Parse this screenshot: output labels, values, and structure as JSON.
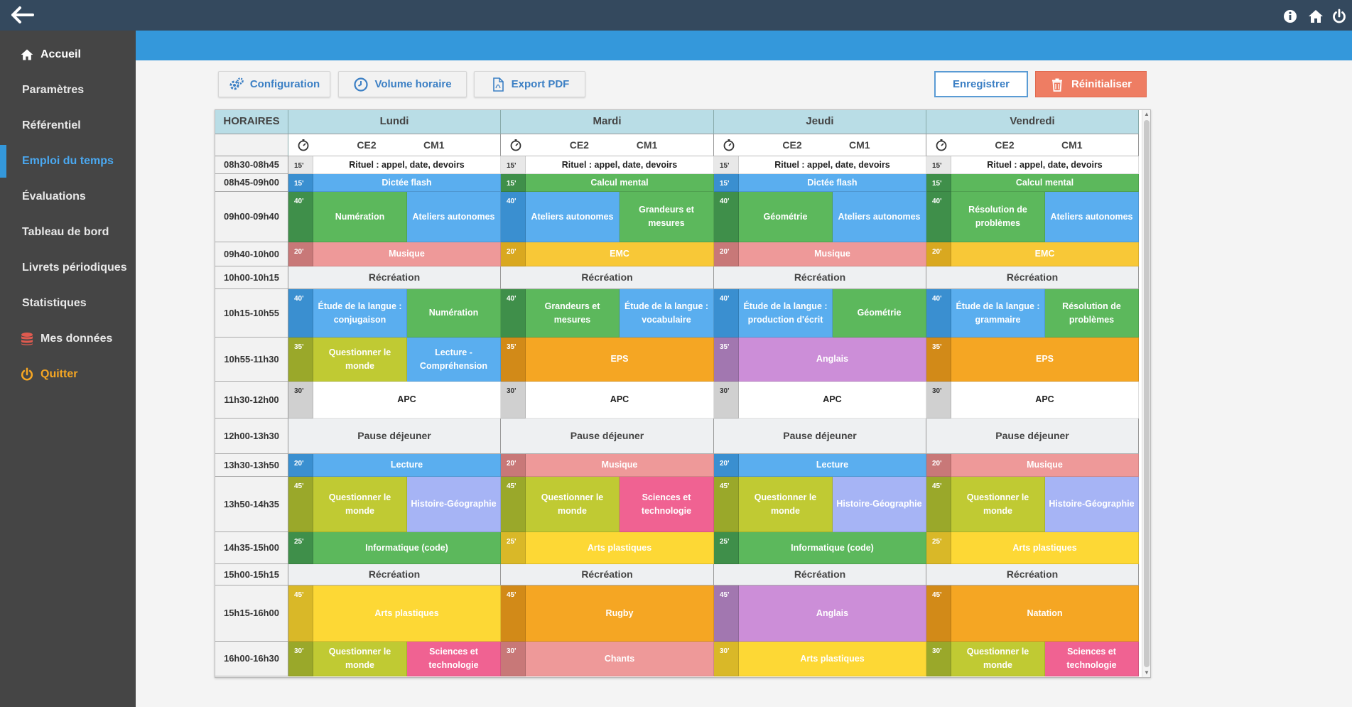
{
  "nav": [
    "Accueil",
    "Paramètres",
    "Référentiel",
    "Emploi du temps",
    "Évaluations",
    "Tableau de bord",
    "Livrets périodiques",
    "Statistiques",
    "Mes données",
    "Quitter"
  ],
  "toolbar": {
    "config": "Configuration",
    "volume": "Volume horaire",
    "export": "Export PDF",
    "save": "Enregistrer",
    "reset": "Réinitialiser"
  },
  "table": {
    "head": "HORAIRES",
    "days": [
      "Lundi",
      "Mardi",
      "Jeudi",
      "Vendredi"
    ],
    "levels": [
      "CE2",
      "CM1"
    ],
    "rows": [
      {
        "time": "08h30-08h45",
        "type": "lesson",
        "cells": [
          {
            "dur": "15'",
            "dc": "#e8e8e8",
            "items": [
              {
                "t": "Rituel : appel, date, devoirs",
                "c": "#ffffff",
                "tc": "#222"
              }
            ]
          },
          {
            "dur": "15'",
            "dc": "#e8e8e8",
            "items": [
              {
                "t": "Rituel : appel, date, devoirs",
                "c": "#ffffff",
                "tc": "#222"
              }
            ]
          },
          {
            "dur": "15'",
            "dc": "#e8e8e8",
            "items": [
              {
                "t": "Rituel : appel, date, devoirs",
                "c": "#ffffff",
                "tc": "#222"
              }
            ]
          },
          {
            "dur": "15'",
            "dc": "#e8e8e8",
            "items": [
              {
                "t": "Rituel : appel, date, devoirs",
                "c": "#ffffff",
                "tc": "#222"
              }
            ]
          }
        ]
      },
      {
        "time": "08h45-09h00",
        "type": "lesson",
        "cells": [
          {
            "dur": "15'",
            "dc": "#3a8fd0",
            "items": [
              {
                "t": "Dictée flash",
                "c": "#5aaeef"
              }
            ]
          },
          {
            "dur": "15'",
            "dc": "#3f8f4a",
            "items": [
              {
                "t": "Calcul mental",
                "c": "#5cb85c"
              }
            ]
          },
          {
            "dur": "15'",
            "dc": "#3a8fd0",
            "items": [
              {
                "t": "Dictée flash",
                "c": "#5aaeef"
              }
            ]
          },
          {
            "dur": "15'",
            "dc": "#3f8f4a",
            "items": [
              {
                "t": "Calcul mental",
                "c": "#5cb85c"
              }
            ]
          }
        ]
      },
      {
        "time": "09h00-09h40",
        "type": "lesson",
        "cells": [
          {
            "dur": "40'",
            "dc": "#3f8f4a",
            "items": [
              {
                "t": "Numération",
                "c": "#5cb85c"
              },
              {
                "t": "Ateliers autonomes",
                "c": "#5aaeef"
              }
            ]
          },
          {
            "dur": "40'",
            "dc": "#3a8fd0",
            "items": [
              {
                "t": "Ateliers autonomes",
                "c": "#5aaeef"
              },
              {
                "t": "Grandeurs et mesures",
                "c": "#5cb85c"
              }
            ]
          },
          {
            "dur": "40'",
            "dc": "#3f8f4a",
            "items": [
              {
                "t": "Géométrie",
                "c": "#5cb85c"
              },
              {
                "t": "Ateliers autonomes",
                "c": "#5aaeef"
              }
            ]
          },
          {
            "dur": "40'",
            "dc": "#3f8f4a",
            "items": [
              {
                "t": "Résolution de problèmes",
                "c": "#5cb85c"
              },
              {
                "t": "Ateliers autonomes",
                "c": "#5aaeef"
              }
            ]
          }
        ]
      },
      {
        "time": "09h40-10h00",
        "type": "lesson",
        "cells": [
          {
            "dur": "20'",
            "dc": "#c87878",
            "items": [
              {
                "t": "Musique",
                "c": "#ee9999"
              }
            ]
          },
          {
            "dur": "20'",
            "dc": "#d9a820",
            "items": [
              {
                "t": "EMC",
                "c": "#f8c837"
              }
            ]
          },
          {
            "dur": "20'",
            "dc": "#c87878",
            "items": [
              {
                "t": "Musique",
                "c": "#ee9999"
              }
            ]
          },
          {
            "dur": "20'",
            "dc": "#d9a820",
            "items": [
              {
                "t": "EMC",
                "c": "#f8c837"
              }
            ]
          }
        ]
      },
      {
        "time": "10h00-10h15",
        "type": "break",
        "label": "Récréation"
      },
      {
        "time": "10h15-10h55",
        "type": "lesson",
        "cells": [
          {
            "dur": "40'",
            "dc": "#3a8fd0",
            "items": [
              {
                "t": "Étude de la langue : conjugaison",
                "c": "#5aaeef"
              },
              {
                "t": "Numération",
                "c": "#5cb85c"
              }
            ]
          },
          {
            "dur": "40'",
            "dc": "#3f8f4a",
            "items": [
              {
                "t": "Grandeurs et mesures",
                "c": "#5cb85c"
              },
              {
                "t": "Étude de la langue : vocabulaire",
                "c": "#5aaeef"
              }
            ]
          },
          {
            "dur": "40'",
            "dc": "#3a8fd0",
            "items": [
              {
                "t": "Étude de la langue : production d'écrit",
                "c": "#5aaeef"
              },
              {
                "t": "Géométrie",
                "c": "#5cb85c"
              }
            ]
          },
          {
            "dur": "40'",
            "dc": "#3a8fd0",
            "items": [
              {
                "t": "Étude de la langue : grammaire",
                "c": "#5aaeef"
              },
              {
                "t": "Résolution de problèmes",
                "c": "#5cb85c"
              }
            ]
          }
        ]
      },
      {
        "time": "10h55-11h30",
        "type": "lesson",
        "cells": [
          {
            "dur": "35'",
            "dc": "#9aa82a",
            "items": [
              {
                "t": "Questionner le monde",
                "c": "#c0ca33"
              },
              {
                "t": "Lecture - Compréhension",
                "c": "#5aaeef"
              }
            ]
          },
          {
            "dur": "35'",
            "dc": "#d28a18",
            "items": [
              {
                "t": "EPS",
                "c": "#f5a623"
              }
            ]
          },
          {
            "dur": "35'",
            "dc": "#a277b0",
            "items": [
              {
                "t": "Anglais",
                "c": "#cc8ed8"
              }
            ]
          },
          {
            "dur": "35'",
            "dc": "#d28a18",
            "items": [
              {
                "t": "EPS",
                "c": "#f5a623"
              }
            ]
          }
        ]
      },
      {
        "time": "11h30-12h00",
        "type": "lesson",
        "cells": [
          {
            "dur": "30'",
            "dc": "#d0d0d0",
            "items": [
              {
                "t": "APC",
                "c": "#ffffff",
                "tc": "#222"
              }
            ]
          },
          {
            "dur": "30'",
            "dc": "#d0d0d0",
            "items": [
              {
                "t": "APC",
                "c": "#ffffff",
                "tc": "#222"
              }
            ]
          },
          {
            "dur": "30'",
            "dc": "#d0d0d0",
            "items": [
              {
                "t": "APC",
                "c": "#ffffff",
                "tc": "#222"
              }
            ]
          },
          {
            "dur": "30'",
            "dc": "#d0d0d0",
            "items": [
              {
                "t": "APC",
                "c": "#ffffff",
                "tc": "#222"
              }
            ]
          }
        ]
      },
      {
        "time": "12h00-13h30",
        "type": "break",
        "label": "Pause déjeuner"
      },
      {
        "time": "13h30-13h50",
        "type": "lesson",
        "cells": [
          {
            "dur": "20'",
            "dc": "#3a8fd0",
            "items": [
              {
                "t": "Lecture",
                "c": "#5aaeef"
              }
            ]
          },
          {
            "dur": "20'",
            "dc": "#c87878",
            "items": [
              {
                "t": "Musique",
                "c": "#ee9999"
              }
            ]
          },
          {
            "dur": "20'",
            "dc": "#3a8fd0",
            "items": [
              {
                "t": "Lecture",
                "c": "#5aaeef"
              }
            ]
          },
          {
            "dur": "20'",
            "dc": "#c87878",
            "items": [
              {
                "t": "Musique",
                "c": "#ee9999"
              }
            ]
          }
        ]
      },
      {
        "time": "13h50-14h35",
        "type": "lesson",
        "cells": [
          {
            "dur": "45'",
            "dc": "#9aa82a",
            "items": [
              {
                "t": "Questionner le monde",
                "c": "#c0ca33"
              },
              {
                "t": "Histoire-Géographie",
                "c": "#a6b4f5"
              }
            ]
          },
          {
            "dur": "45'",
            "dc": "#9aa82a",
            "items": [
              {
                "t": "Questionner le monde",
                "c": "#c0ca33"
              },
              {
                "t": "Sciences et technologie",
                "c": "#f06292"
              }
            ]
          },
          {
            "dur": "45'",
            "dc": "#9aa82a",
            "items": [
              {
                "t": "Questionner le monde",
                "c": "#c0ca33"
              },
              {
                "t": "Histoire-Géographie",
                "c": "#a6b4f5"
              }
            ]
          },
          {
            "dur": "45'",
            "dc": "#9aa82a",
            "items": [
              {
                "t": "Questionner le monde",
                "c": "#c0ca33"
              },
              {
                "t": "Histoire-Géographie",
                "c": "#a6b4f5"
              }
            ]
          }
        ]
      },
      {
        "time": "14h35-15h00",
        "type": "lesson",
        "cells": [
          {
            "dur": "25'",
            "dc": "#3f8f4a",
            "items": [
              {
                "t": "Informatique (code)",
                "c": "#5cb85c"
              }
            ]
          },
          {
            "dur": "25'",
            "dc": "#d9b828",
            "items": [
              {
                "t": "Arts plastiques",
                "c": "#fdd835"
              }
            ]
          },
          {
            "dur": "25'",
            "dc": "#3f8f4a",
            "items": [
              {
                "t": "Informatique (code)",
                "c": "#5cb85c"
              }
            ]
          },
          {
            "dur": "25'",
            "dc": "#d9b828",
            "items": [
              {
                "t": "Arts plastiques",
                "c": "#fdd835"
              }
            ]
          }
        ]
      },
      {
        "time": "15h00-15h15",
        "type": "break",
        "label": "Récréation"
      },
      {
        "time": "15h15-16h00",
        "type": "lesson",
        "cells": [
          {
            "dur": "45'",
            "dc": "#d9b828",
            "items": [
              {
                "t": "Arts plastiques",
                "c": "#fdd835"
              }
            ]
          },
          {
            "dur": "45'",
            "dc": "#d28a18",
            "items": [
              {
                "t": "Rugby",
                "c": "#f5a623"
              }
            ]
          },
          {
            "dur": "45'",
            "dc": "#a277b0",
            "items": [
              {
                "t": "Anglais",
                "c": "#cc8ed8"
              }
            ]
          },
          {
            "dur": "45'",
            "dc": "#d28a18",
            "items": [
              {
                "t": "Natation",
                "c": "#f5a623"
              }
            ]
          }
        ]
      },
      {
        "time": "16h00-16h30",
        "type": "lesson",
        "cells": [
          {
            "dur": "30'",
            "dc": "#9aa82a",
            "items": [
              {
                "t": "Questionner le monde",
                "c": "#c0ca33"
              },
              {
                "t": "Sciences et technologie",
                "c": "#f06292"
              }
            ]
          },
          {
            "dur": "30'",
            "dc": "#c87878",
            "items": [
              {
                "t": "Chants",
                "c": "#ee9999"
              }
            ]
          },
          {
            "dur": "30'",
            "dc": "#d9b828",
            "items": [
              {
                "t": "Arts plastiques",
                "c": "#fdd835"
              }
            ]
          },
          {
            "dur": "30'",
            "dc": "#9aa82a",
            "items": [
              {
                "t": "Questionner le monde",
                "c": "#c0ca33"
              },
              {
                "t": "Sciences et technologie",
                "c": "#f06292"
              }
            ]
          }
        ]
      }
    ]
  }
}
